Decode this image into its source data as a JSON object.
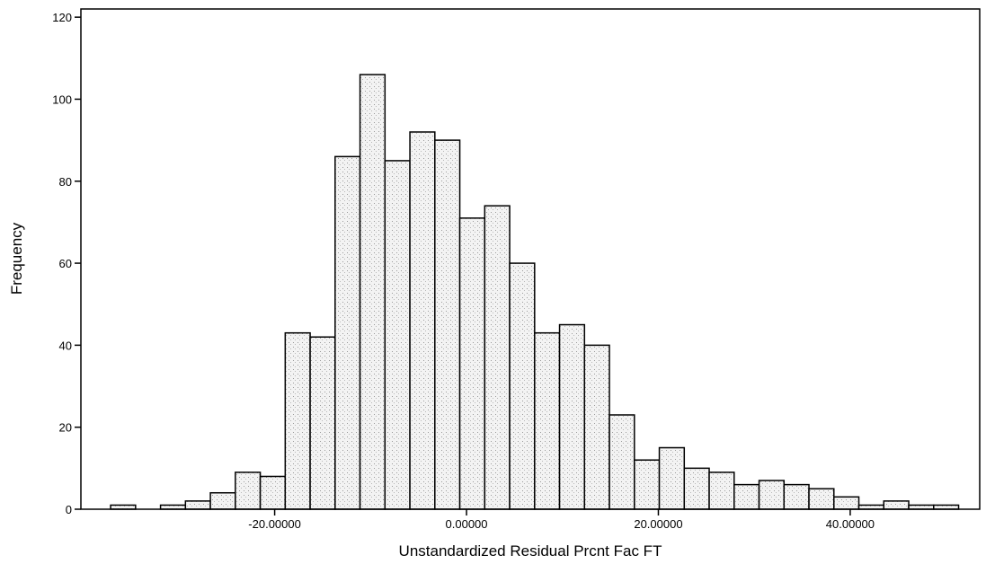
{
  "chart_data": {
    "type": "bar",
    "subtype": "histogram",
    "title": "",
    "xlabel": "Unstandardized Residual Prcnt Fac FT",
    "ylabel": "Frequency",
    "bin_width": 2.6,
    "bins": [
      {
        "center": -35.8,
        "count": 1
      },
      {
        "center": -33.2,
        "count": 0
      },
      {
        "center": -30.6,
        "count": 1
      },
      {
        "center": -28.0,
        "count": 2
      },
      {
        "center": -25.4,
        "count": 4
      },
      {
        "center": -22.8,
        "count": 9
      },
      {
        "center": -20.2,
        "count": 8
      },
      {
        "center": -17.6,
        "count": 43
      },
      {
        "center": -15.0,
        "count": 42
      },
      {
        "center": -12.4,
        "count": 86
      },
      {
        "center": -9.8,
        "count": 106
      },
      {
        "center": -7.2,
        "count": 85
      },
      {
        "center": -4.6,
        "count": 92
      },
      {
        "center": -2.0,
        "count": 90
      },
      {
        "center": 0.6,
        "count": 71
      },
      {
        "center": 3.2,
        "count": 74
      },
      {
        "center": 5.8,
        "count": 60
      },
      {
        "center": 8.4,
        "count": 43
      },
      {
        "center": 11.0,
        "count": 45
      },
      {
        "center": 13.6,
        "count": 40
      },
      {
        "center": 16.2,
        "count": 23
      },
      {
        "center": 18.8,
        "count": 12
      },
      {
        "center": 21.4,
        "count": 15
      },
      {
        "center": 24.0,
        "count": 10
      },
      {
        "center": 26.6,
        "count": 9
      },
      {
        "center": 29.2,
        "count": 6
      },
      {
        "center": 31.8,
        "count": 7
      },
      {
        "center": 34.4,
        "count": 6
      },
      {
        "center": 37.0,
        "count": 5
      },
      {
        "center": 39.6,
        "count": 3
      },
      {
        "center": 42.2,
        "count": 1
      },
      {
        "center": 44.8,
        "count": 2
      },
      {
        "center": 47.4,
        "count": 1
      },
      {
        "center": 50.0,
        "count": 1
      }
    ],
    "xlim": [
      -40.2,
      53.5
    ],
    "ylim": [
      0,
      122
    ],
    "xticks": [
      {
        "value": -20,
        "label": "-20.00000"
      },
      {
        "value": 0,
        "label": "0.00000"
      },
      {
        "value": 20,
        "label": "20.00000"
      },
      {
        "value": 40,
        "label": "40.00000"
      }
    ],
    "yticks": [
      {
        "value": 0,
        "label": "0"
      },
      {
        "value": 20,
        "label": "20"
      },
      {
        "value": 40,
        "label": "40"
      },
      {
        "value": 60,
        "label": "60"
      },
      {
        "value": 80,
        "label": "80"
      },
      {
        "value": 100,
        "label": "100"
      },
      {
        "value": 120,
        "label": "120"
      }
    ],
    "grid": false,
    "legend": "none",
    "bar_fill": "#e6e6e6",
    "bar_stroke": "#000000"
  }
}
